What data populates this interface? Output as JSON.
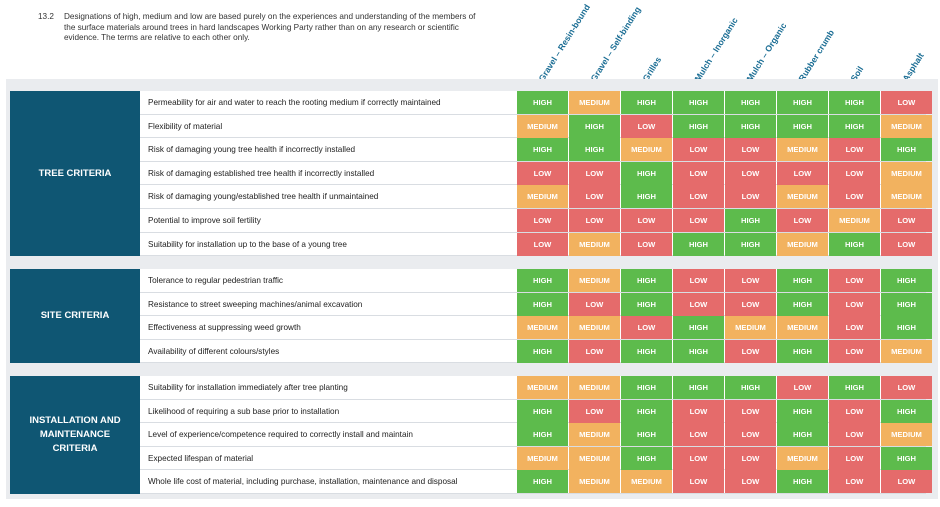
{
  "note": {
    "number": "13.2",
    "text": "Designations of high, medium and low are based purely on the experiences and understanding of the members of the surface materials around trees in hard landscapes Working Party rather than on any research or scientific evidence. The terms are relative to each other only."
  },
  "columns": [
    "Gravel – Resin-bound",
    "Gravel – Self-binding",
    "Grilles",
    "Mulch – Inorganic",
    "Mulch – Organic",
    "Rubber crumb",
    "Soil",
    "Asphalt"
  ],
  "colors": {
    "high": "#5dbb4c",
    "medium": "#f2b25f",
    "low": "#e56b6b",
    "category": "#0f5673",
    "header": "#1a6d94"
  },
  "sections": [
    {
      "title": "TREE CRITERIA",
      "rows": [
        {
          "label": "Permeability for air and water to reach the rooting medium if correctly maintained",
          "values": [
            "HIGH",
            "MEDIUM",
            "HIGH",
            "HIGH",
            "HIGH",
            "HIGH",
            "HIGH",
            "LOW"
          ]
        },
        {
          "label": "Flexibility of material",
          "values": [
            "MEDIUM",
            "HIGH",
            "LOW",
            "HIGH",
            "HIGH",
            "HIGH",
            "HIGH",
            "MEDIUM"
          ]
        },
        {
          "label": "Risk of damaging young tree health if incorrectly installed",
          "values": [
            "HIGH",
            "HIGH",
            "MEDIUM",
            "LOW",
            "LOW",
            "MEDIUM",
            "LOW",
            "HIGH"
          ]
        },
        {
          "label": "Risk of damaging established tree health if incorrectly installed",
          "values": [
            "LOW",
            "LOW",
            "HIGH",
            "LOW",
            "LOW",
            "LOW",
            "LOW",
            "MEDIUM"
          ]
        },
        {
          "label": "Risk of damaging young/established tree health if unmaintained",
          "values": [
            "MEDIUM",
            "LOW",
            "HIGH",
            "LOW",
            "LOW",
            "MEDIUM",
            "LOW",
            "MEDIUM"
          ]
        },
        {
          "label": "Potential to improve soil fertility",
          "values": [
            "LOW",
            "LOW",
            "LOW",
            "LOW",
            "HIGH",
            "LOW",
            "MEDIUM",
            "LOW"
          ]
        },
        {
          "label": "Suitability for installation up to the base of a young tree",
          "values": [
            "LOW",
            "MEDIUM",
            "LOW",
            "HIGH",
            "HIGH",
            "MEDIUM",
            "HIGH",
            "LOW"
          ]
        }
      ]
    },
    {
      "title": "SITE CRITERIA",
      "rows": [
        {
          "label": "Tolerance to regular pedestrian traffic",
          "values": [
            "HIGH",
            "MEDIUM",
            "HIGH",
            "LOW",
            "LOW",
            "HIGH",
            "LOW",
            "HIGH"
          ]
        },
        {
          "label": "Resistance to street sweeping machines/animal excavation",
          "values": [
            "HIGH",
            "LOW",
            "HIGH",
            "LOW",
            "LOW",
            "HIGH",
            "LOW",
            "HIGH"
          ]
        },
        {
          "label": "Effectiveness at suppressing weed growth",
          "values": [
            "MEDIUM",
            "MEDIUM",
            "LOW",
            "HIGH",
            "MEDIUM",
            "MEDIUM",
            "LOW",
            "HIGH"
          ]
        },
        {
          "label": "Availability of different colours/styles",
          "values": [
            "HIGH",
            "LOW",
            "HIGH",
            "HIGH",
            "LOW",
            "HIGH",
            "LOW",
            "MEDIUM"
          ]
        }
      ]
    },
    {
      "title": "INSTALLATION AND MAINTENANCE CRITERIA",
      "rows": [
        {
          "label": "Suitability for installation immediately after tree planting",
          "values": [
            "MEDIUM",
            "MEDIUM",
            "HIGH",
            "HIGH",
            "HIGH",
            "LOW",
            "HIGH",
            "LOW"
          ]
        },
        {
          "label": "Likelihood of requiring a sub base prior to installation",
          "values": [
            "HIGH",
            "LOW",
            "HIGH",
            "LOW",
            "LOW",
            "HIGH",
            "LOW",
            "HIGH"
          ]
        },
        {
          "label": "Level of experience/competence required to correctly install and maintain",
          "values": [
            "HIGH",
            "MEDIUM",
            "HIGH",
            "LOW",
            "LOW",
            "HIGH",
            "LOW",
            "MEDIUM"
          ]
        },
        {
          "label": "Expected lifespan of material",
          "values": [
            "MEDIUM",
            "MEDIUM",
            "HIGH",
            "LOW",
            "LOW",
            "MEDIUM",
            "LOW",
            "HIGH"
          ]
        },
        {
          "label": "Whole life cost of material, including purchase, installation, maintenance and disposal",
          "values": [
            "HIGH",
            "MEDIUM",
            "MEDIUM",
            "LOW",
            "LOW",
            "HIGH",
            "LOW",
            "LOW"
          ]
        }
      ]
    }
  ]
}
